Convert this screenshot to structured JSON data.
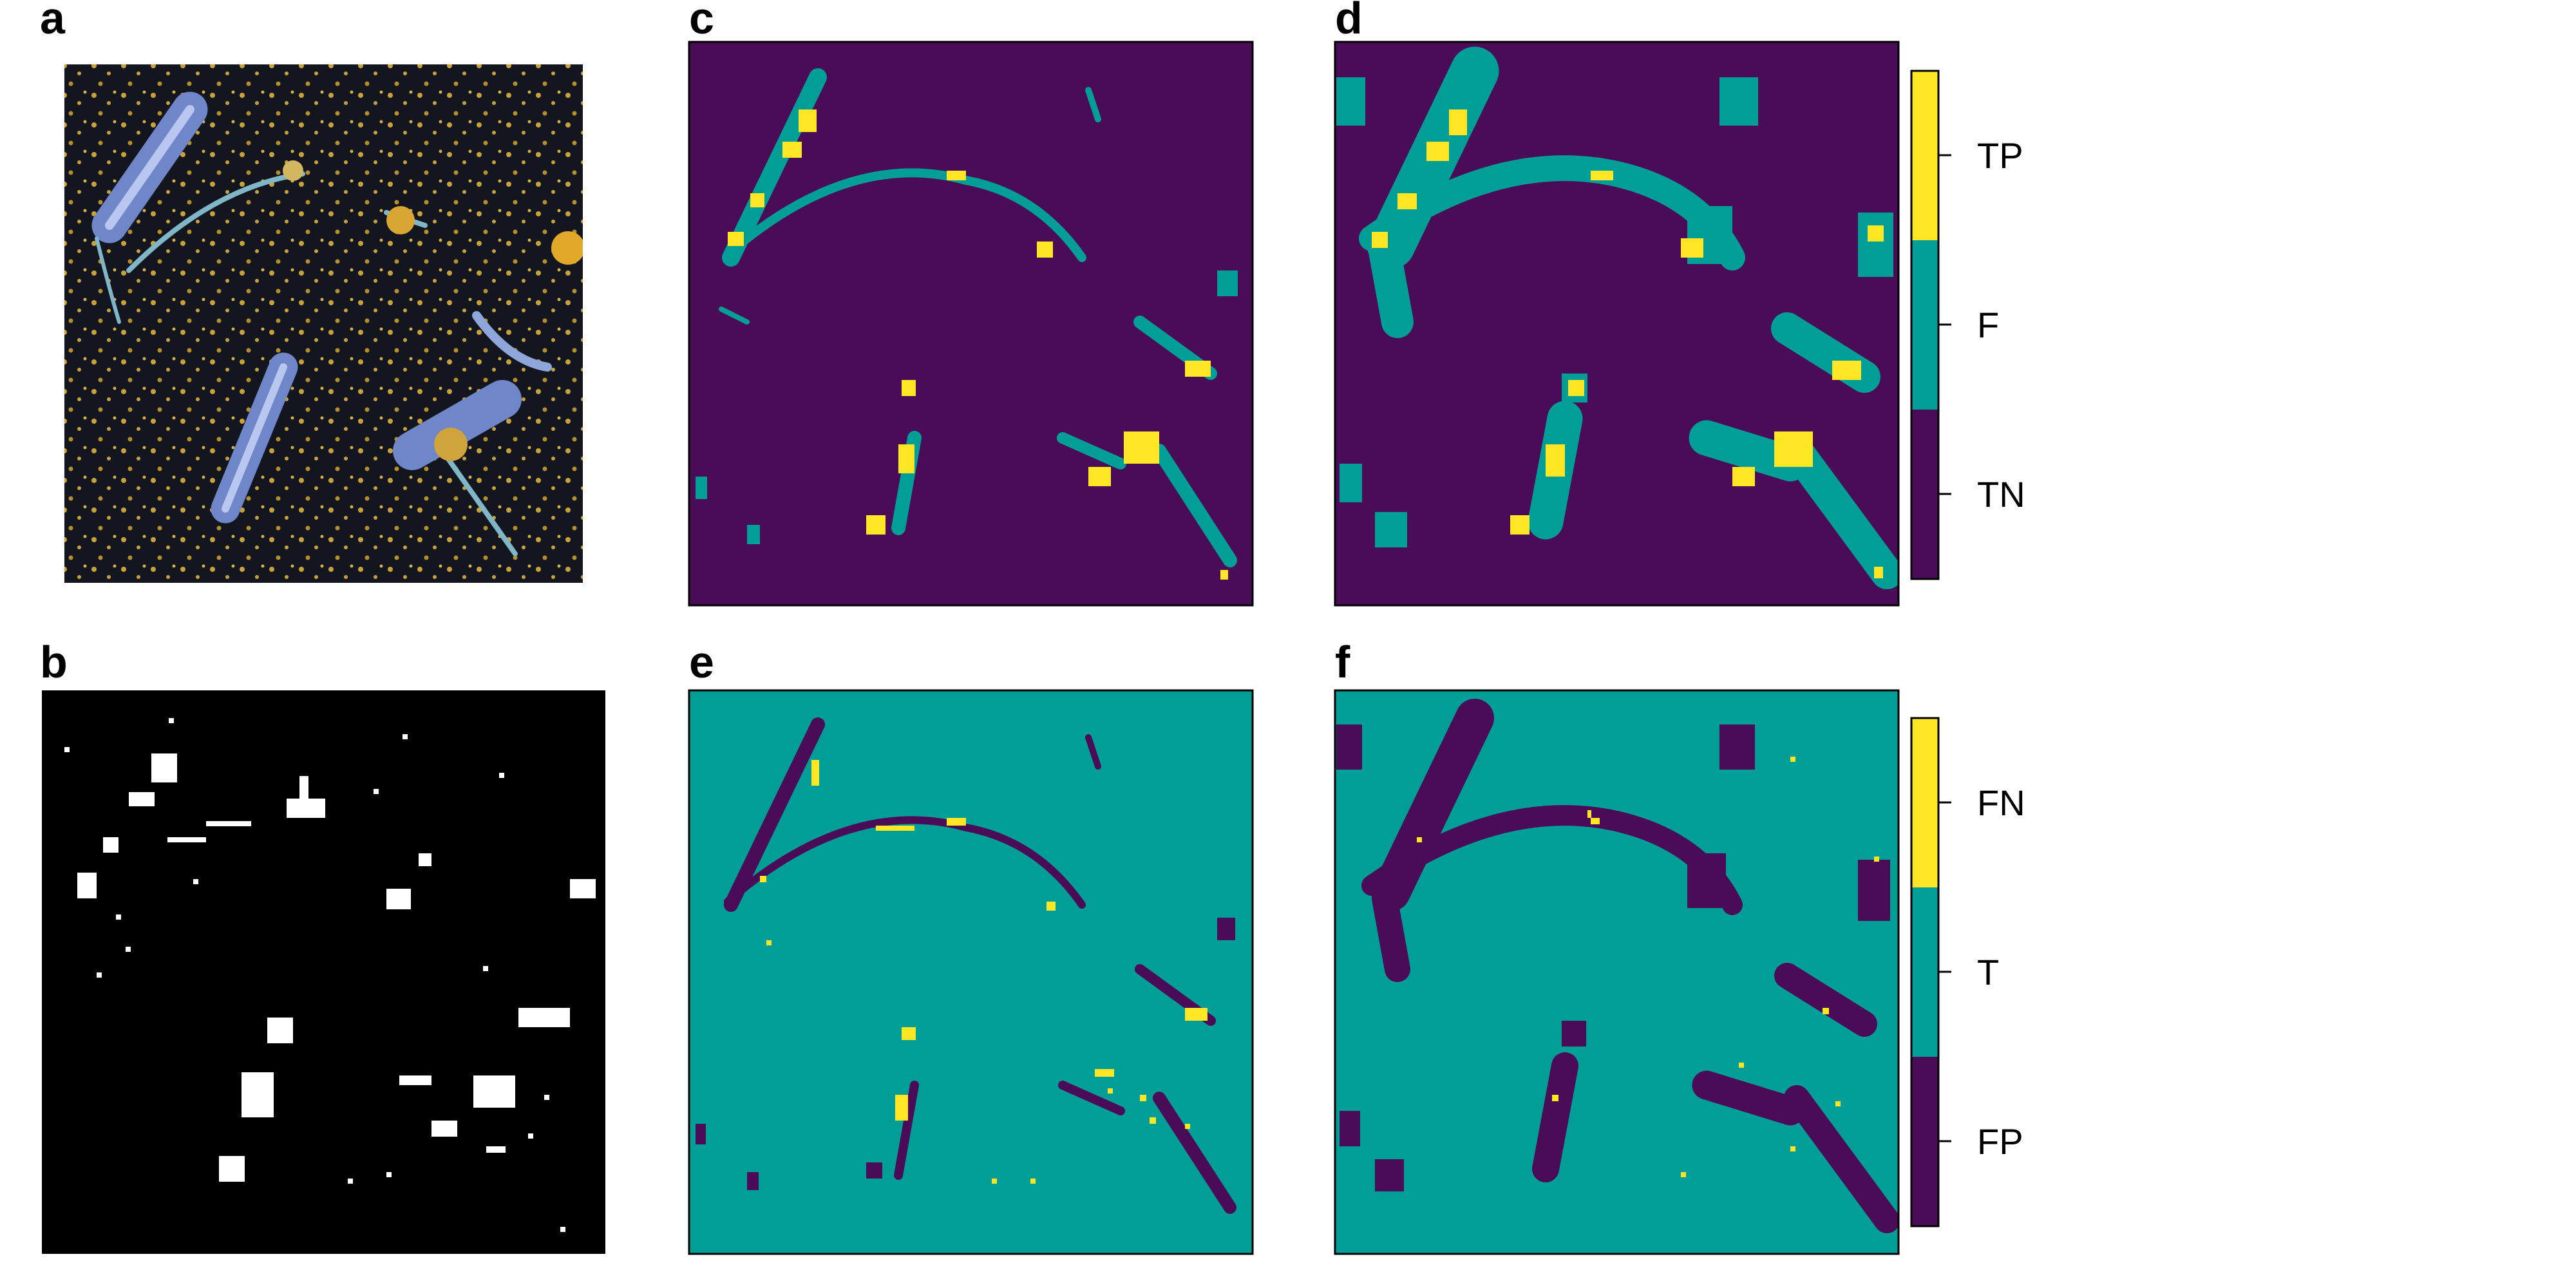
{
  "panels": {
    "a": {
      "label": "a",
      "kind": "photograph"
    },
    "b": {
      "label": "b",
      "kind": "binary-mask",
      "colors": {
        "background": "#000000",
        "foreground": "#ffffff"
      }
    },
    "c": {
      "label": "c",
      "kind": "classification-map",
      "legend": "top"
    },
    "d": {
      "label": "d",
      "kind": "classification-map",
      "legend": "top"
    },
    "e": {
      "label": "e",
      "kind": "classification-map",
      "legend": "bottom"
    },
    "f": {
      "label": "f",
      "kind": "classification-map",
      "legend": "bottom"
    }
  },
  "legend_top": {
    "entries": [
      {
        "label": "TP",
        "color": "#fde725"
      },
      {
        "label": "F",
        "color": "#009e96"
      },
      {
        "label": "TN",
        "color": "#4a0b57"
      }
    ]
  },
  "legend_bottom": {
    "entries": [
      {
        "label": "FN",
        "color": "#fde725"
      },
      {
        "label": "T",
        "color": "#009e96"
      },
      {
        "label": "FP",
        "color": "#4a0b57"
      }
    ]
  },
  "colors": {
    "photo_background": "#14161f",
    "photo_specks": "#c9a23a",
    "photo_organism": "#6f86c8",
    "purple": "#4a0b57",
    "teal": "#009e96",
    "yellow": "#fde725"
  }
}
